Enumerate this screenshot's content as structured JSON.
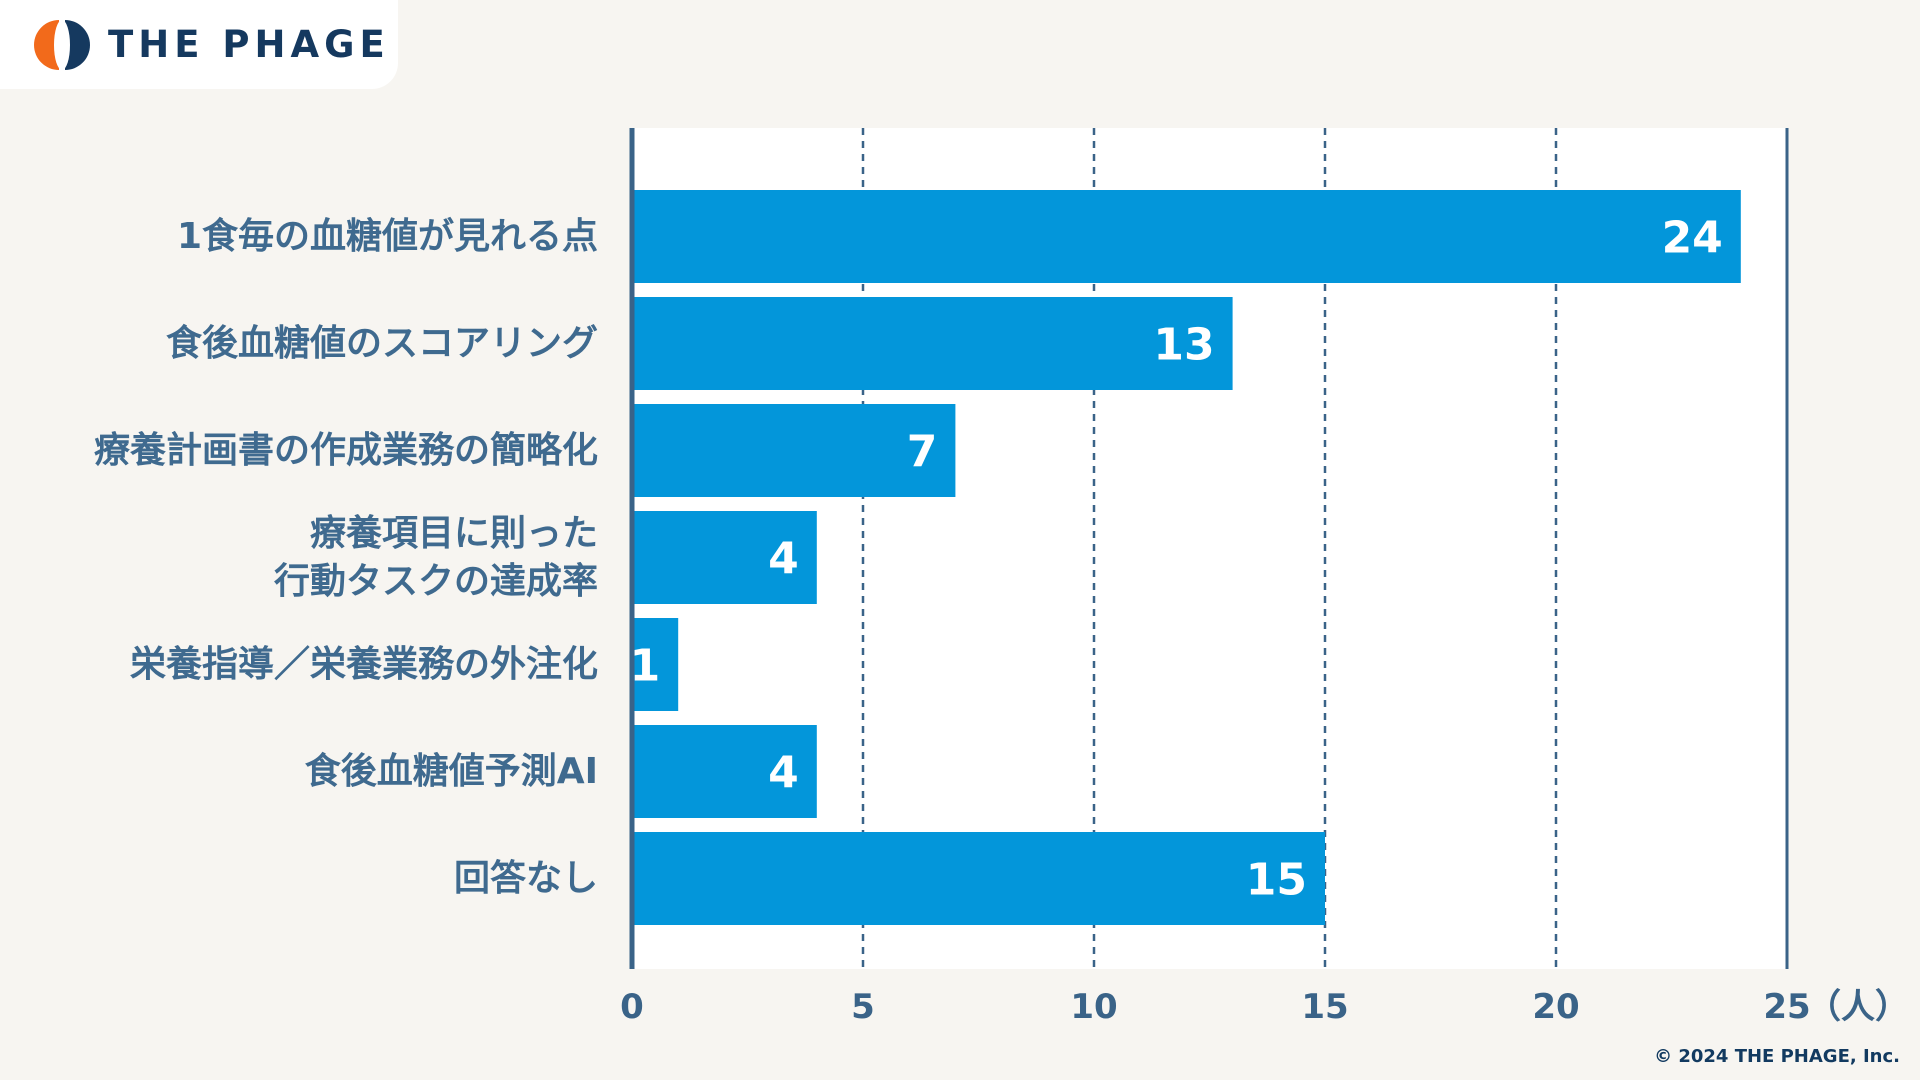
{
  "brand": {
    "logo_text": "THE PHAGE",
    "logo_mark": "phage-logo-icon",
    "colors": {
      "orange": "#f26a1b",
      "navy": "#15395f"
    }
  },
  "copyright": "© 2024 THE PHAGE, Inc.",
  "colors": {
    "bar": "#0396da",
    "axis": "#3a6388",
    "label": "#3f6a8f",
    "background": "#f7f5f1",
    "plot_background": "#ffffff"
  },
  "chart_data": {
    "type": "bar",
    "orientation": "horizontal",
    "categories": [
      "1食毎の血糖値が見れる点",
      "食後血糖値のスコアリング",
      "療養計画書の作成業務の簡略化",
      "療養項目に則った\n行動タスクの達成率",
      "栄養指導／栄養業務の外注化",
      "食後血糖値予測AI",
      "回答なし"
    ],
    "values": [
      24,
      13,
      7,
      4,
      1,
      4,
      15
    ],
    "xlim": [
      0,
      25
    ],
    "xticks": [
      0,
      5,
      10,
      15,
      20,
      25
    ],
    "x_unit_label": "（人）",
    "grid": "vertical-dashed",
    "data_labels": true
  }
}
